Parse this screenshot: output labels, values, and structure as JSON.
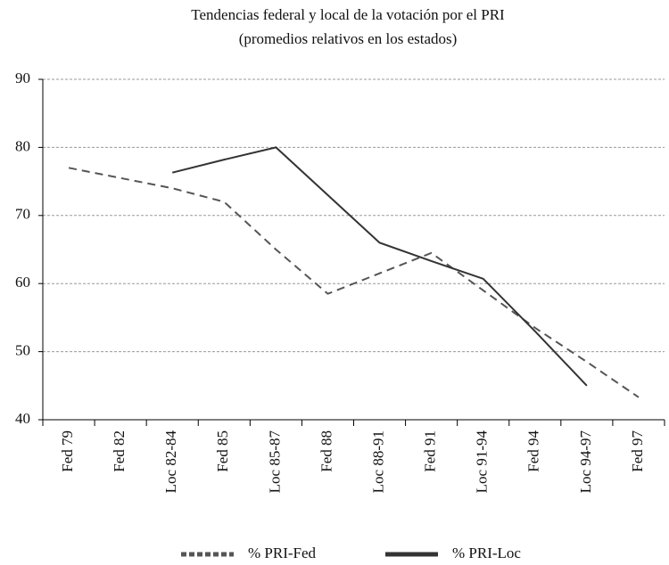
{
  "chart_data": {
    "type": "line",
    "title": [
      "Tendencias federal y local de la votación por el PRI",
      "(promedios relativos en los estados)"
    ],
    "categories": [
      "Fed 79",
      "Fed 82",
      "Loc 82-84",
      "Fed 85",
      "Loc 85-87",
      "Fed 88",
      "Loc 88-91",
      "Fed 91",
      "Loc 91-94",
      "Fed 94",
      "Loc 94-97",
      "Fed 97"
    ],
    "series": [
      {
        "name": "% PRI-Fed",
        "color": "#555555",
        "dash": true,
        "values": [
          77,
          75.5,
          74,
          72,
          65,
          58.5,
          61.5,
          64.5,
          59,
          53.5,
          48.5,
          43.3
        ]
      },
      {
        "name": "% PRI-Loc",
        "color": "#333333",
        "dash": false,
        "values": [
          null,
          null,
          76.3,
          78.2,
          80,
          73,
          66,
          63.3,
          60.7,
          53,
          45,
          null
        ]
      }
    ],
    "ylim": [
      40,
      90
    ],
    "yticks": [
      40,
      50,
      60,
      70,
      80,
      90
    ],
    "grid": true,
    "legend": "bottom"
  }
}
